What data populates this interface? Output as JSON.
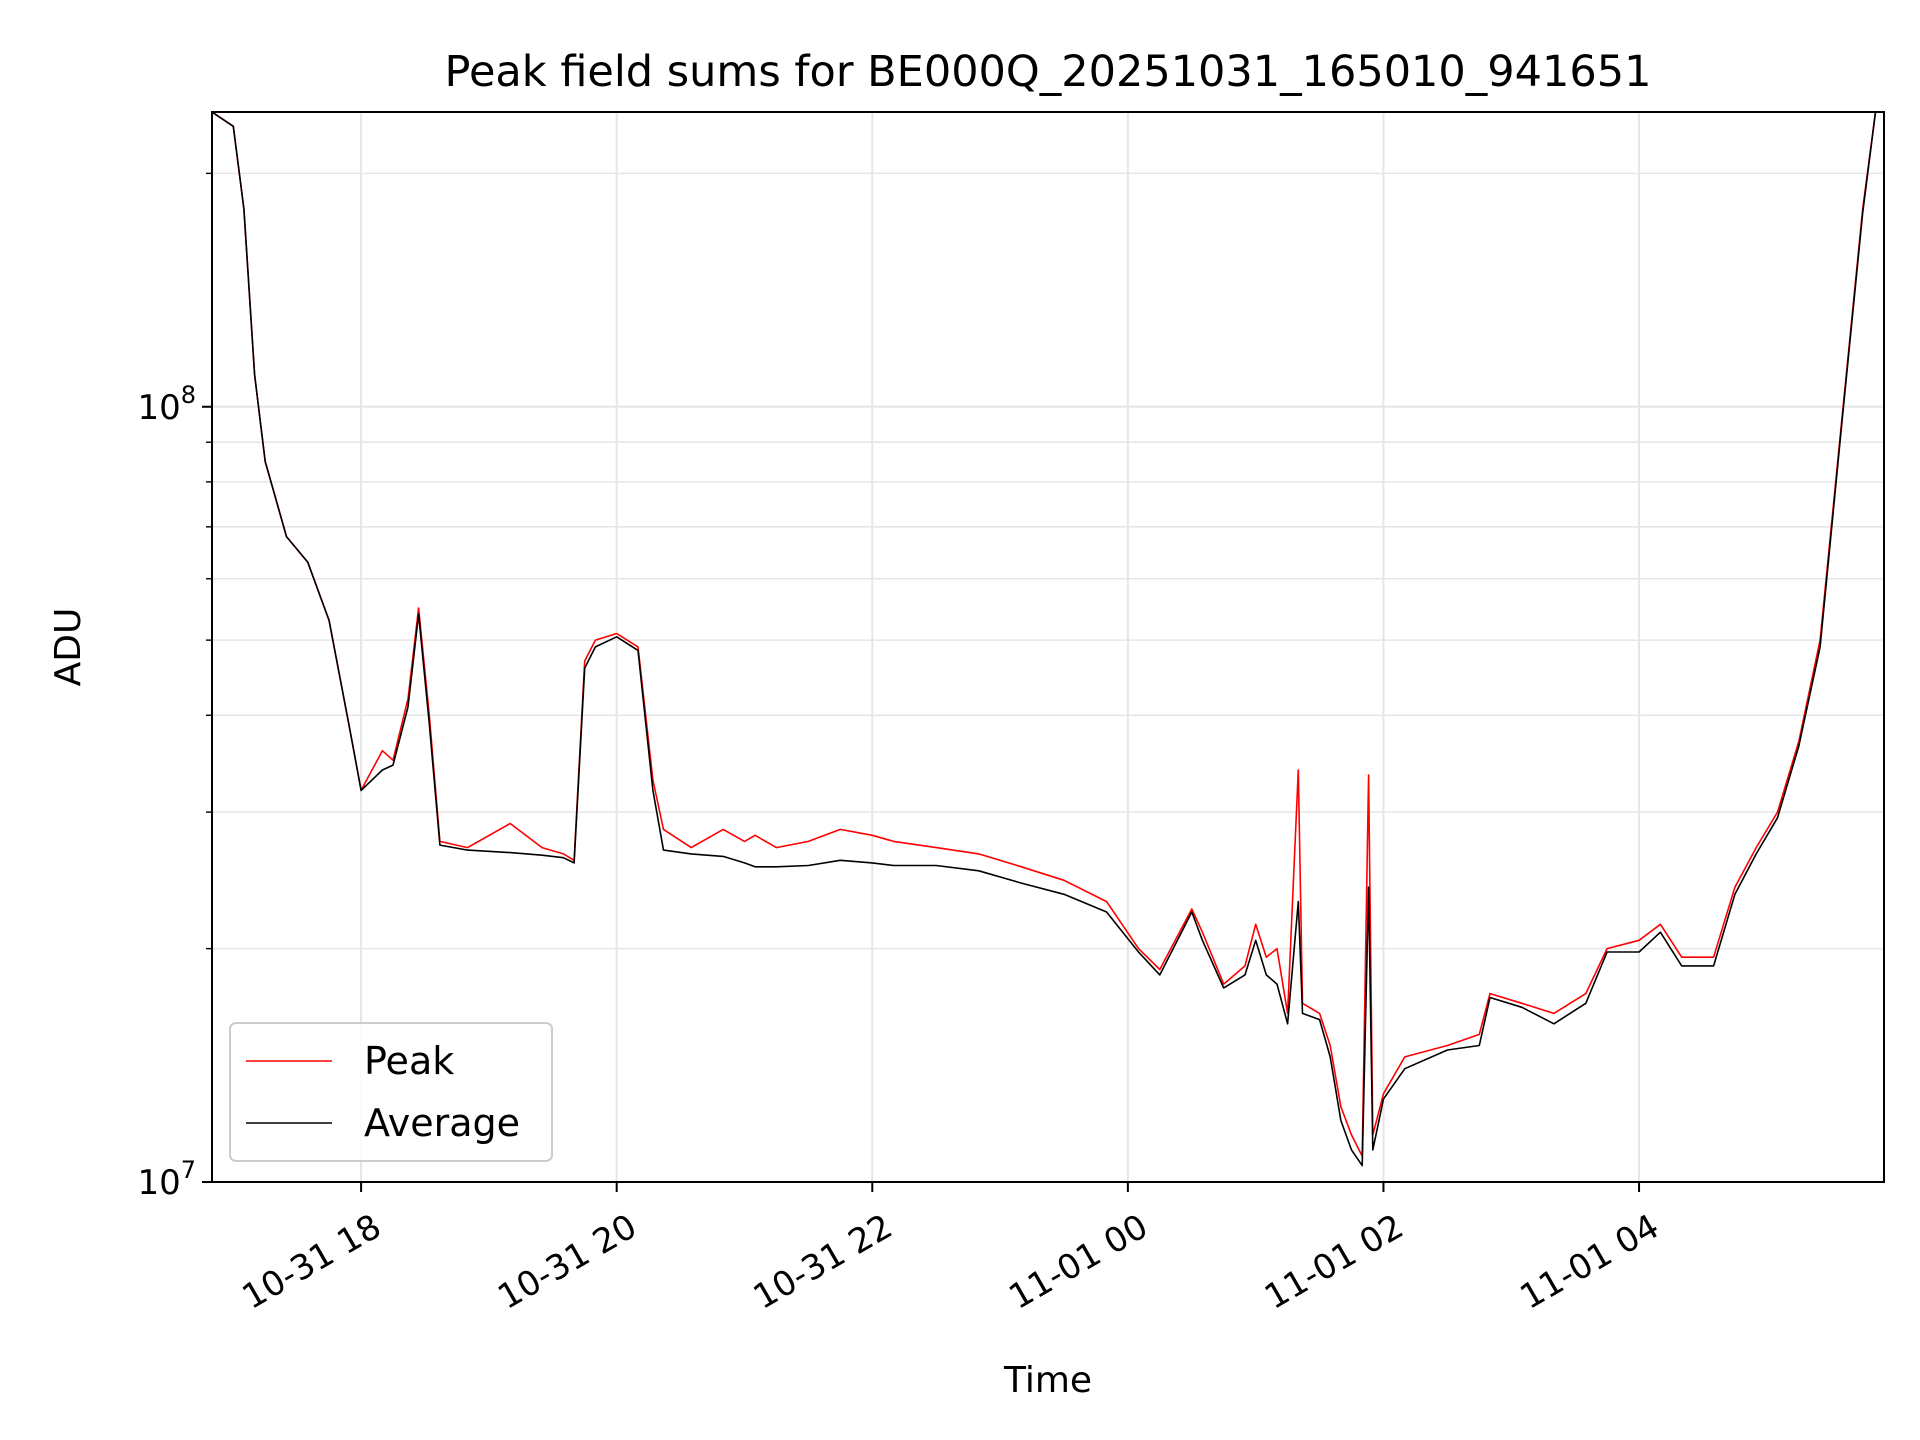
{
  "chart_data": {
    "type": "line",
    "title": "Peak field sums for BE000Q_20251031_165010_941651",
    "xlabel": "Time",
    "ylabel": "ADU",
    "y_scale": "log",
    "ylim": [
      10000000,
      240000000
    ],
    "xlim": [
      "2025-10-31T16:50",
      "2025-11-01T05:55"
    ],
    "x_ticks": [
      {
        "t": "2025-10-31T18:00",
        "label": "10-31 18"
      },
      {
        "t": "2025-10-31T20:00",
        "label": "10-31 20"
      },
      {
        "t": "2025-10-31T22:00",
        "label": "10-31 22"
      },
      {
        "t": "2025-11-01T00:00",
        "label": "11-01 00"
      },
      {
        "t": "2025-11-01T02:00",
        "label": "11-01 02"
      },
      {
        "t": "2025-11-01T04:00",
        "label": "11-01 04"
      }
    ],
    "y_ticks": [
      {
        "value": 10000000,
        "base": "10",
        "exp": "7"
      },
      {
        "value": 100000000,
        "base": "10",
        "exp": "8"
      }
    ],
    "grid": true,
    "legend_position": "lower-left",
    "series": [
      {
        "name": "Peak",
        "color": "#ff0000",
        "points": [
          [
            "2025-10-31T16:50",
            240000000
          ],
          [
            "2025-10-31T17:00",
            230000000
          ],
          [
            "2025-10-31T17:05",
            180000000
          ],
          [
            "2025-10-31T17:10",
            110000000
          ],
          [
            "2025-10-31T17:15",
            85000000
          ],
          [
            "2025-10-31T17:25",
            68000000
          ],
          [
            "2025-10-31T17:35",
            63000000
          ],
          [
            "2025-10-31T17:45",
            53000000
          ],
          [
            "2025-10-31T17:55",
            38000000
          ],
          [
            "2025-10-31T18:00",
            32000000
          ],
          [
            "2025-10-31T18:10",
            36000000
          ],
          [
            "2025-10-31T18:15",
            35000000
          ],
          [
            "2025-10-31T18:22",
            42000000
          ],
          [
            "2025-10-31T18:27",
            55000000
          ],
          [
            "2025-10-31T18:32",
            40000000
          ],
          [
            "2025-10-31T18:37",
            27500000
          ],
          [
            "2025-10-31T18:50",
            27000000
          ],
          [
            "2025-10-31T19:10",
            29000000
          ],
          [
            "2025-10-31T19:25",
            27000000
          ],
          [
            "2025-10-31T19:35",
            26500000
          ],
          [
            "2025-10-31T19:40",
            26000000
          ],
          [
            "2025-10-31T19:45",
            47000000
          ],
          [
            "2025-10-31T19:50",
            50000000
          ],
          [
            "2025-10-31T20:00",
            51000000
          ],
          [
            "2025-10-31T20:10",
            49000000
          ],
          [
            "2025-10-31T20:17",
            33000000
          ],
          [
            "2025-10-31T20:22",
            28500000
          ],
          [
            "2025-10-31T20:35",
            27000000
          ],
          [
            "2025-10-31T20:50",
            28500000
          ],
          [
            "2025-10-31T21:00",
            27500000
          ],
          [
            "2025-10-31T21:05",
            28000000
          ],
          [
            "2025-10-31T21:15",
            27000000
          ],
          [
            "2025-10-31T21:30",
            27500000
          ],
          [
            "2025-10-31T21:45",
            28500000
          ],
          [
            "2025-10-31T22:00",
            28000000
          ],
          [
            "2025-10-31T22:10",
            27500000
          ],
          [
            "2025-10-31T22:30",
            27000000
          ],
          [
            "2025-10-31T22:50",
            26500000
          ],
          [
            "2025-10-31T23:10",
            25500000
          ],
          [
            "2025-10-31T23:30",
            24500000
          ],
          [
            "2025-10-31T23:50",
            23000000
          ],
          [
            "2025-11-01T00:05",
            20000000
          ],
          [
            "2025-11-01T00:15",
            18800000
          ],
          [
            "2025-11-01T00:30",
            22500000
          ],
          [
            "2025-11-01T00:35",
            21000000
          ],
          [
            "2025-11-01T00:45",
            18000000
          ],
          [
            "2025-11-01T00:55",
            19000000
          ],
          [
            "2025-11-01T01:00",
            21500000
          ],
          [
            "2025-11-01T01:05",
            19500000
          ],
          [
            "2025-11-01T01:10",
            20000000
          ],
          [
            "2025-11-01T01:15",
            16500000
          ],
          [
            "2025-11-01T01:20",
            34000000
          ],
          [
            "2025-11-01T01:22",
            17000000
          ],
          [
            "2025-11-01T01:30",
            16500000
          ],
          [
            "2025-11-01T01:35",
            15000000
          ],
          [
            "2025-11-01T01:40",
            12500000
          ],
          [
            "2025-11-01T01:45",
            11500000
          ],
          [
            "2025-11-01T01:50",
            10800000
          ],
          [
            "2025-11-01T01:53",
            33500000
          ],
          [
            "2025-11-01T01:55",
            11500000
          ],
          [
            "2025-11-01T02:00",
            13000000
          ],
          [
            "2025-11-01T02:10",
            14500000
          ],
          [
            "2025-11-01T02:30",
            15000000
          ],
          [
            "2025-11-01T02:45",
            15500000
          ],
          [
            "2025-11-01T02:50",
            17500000
          ],
          [
            "2025-11-01T03:05",
            17000000
          ],
          [
            "2025-11-01T03:20",
            16500000
          ],
          [
            "2025-11-01T03:35",
            17500000
          ],
          [
            "2025-11-01T03:45",
            20000000
          ],
          [
            "2025-11-01T04:00",
            20500000
          ],
          [
            "2025-11-01T04:10",
            21500000
          ],
          [
            "2025-11-01T04:20",
            19500000
          ],
          [
            "2025-11-01T04:35",
            19500000
          ],
          [
            "2025-11-01T04:45",
            24000000
          ],
          [
            "2025-11-01T04:55",
            27000000
          ],
          [
            "2025-11-01T05:05",
            30000000
          ],
          [
            "2025-11-01T05:15",
            37000000
          ],
          [
            "2025-11-01T05:25",
            50000000
          ],
          [
            "2025-11-01T05:35",
            95000000
          ],
          [
            "2025-11-01T05:45",
            180000000
          ],
          [
            "2025-11-01T05:51",
            240000000
          ]
        ]
      },
      {
        "name": "Average",
        "color": "#000000",
        "points": [
          [
            "2025-10-31T16:50",
            240000000
          ],
          [
            "2025-10-31T17:00",
            230000000
          ],
          [
            "2025-10-31T17:05",
            180000000
          ],
          [
            "2025-10-31T17:10",
            110000000
          ],
          [
            "2025-10-31T17:15",
            85000000
          ],
          [
            "2025-10-31T17:25",
            68000000
          ],
          [
            "2025-10-31T17:35",
            63000000
          ],
          [
            "2025-10-31T17:45",
            53000000
          ],
          [
            "2025-10-31T17:55",
            38000000
          ],
          [
            "2025-10-31T18:00",
            32000000
          ],
          [
            "2025-10-31T18:10",
            34000000
          ],
          [
            "2025-10-31T18:15",
            34500000
          ],
          [
            "2025-10-31T18:22",
            41000000
          ],
          [
            "2025-10-31T18:27",
            54000000
          ],
          [
            "2025-10-31T18:32",
            39000000
          ],
          [
            "2025-10-31T18:37",
            27200000
          ],
          [
            "2025-10-31T18:50",
            26800000
          ],
          [
            "2025-10-31T19:10",
            26600000
          ],
          [
            "2025-10-31T19:25",
            26400000
          ],
          [
            "2025-10-31T19:35",
            26200000
          ],
          [
            "2025-10-31T19:40",
            25800000
          ],
          [
            "2025-10-31T19:45",
            46000000
          ],
          [
            "2025-10-31T19:50",
            49000000
          ],
          [
            "2025-10-31T20:00",
            50500000
          ],
          [
            "2025-10-31T20:10",
            48500000
          ],
          [
            "2025-10-31T20:17",
            32000000
          ],
          [
            "2025-10-31T20:22",
            26800000
          ],
          [
            "2025-10-31T20:35",
            26500000
          ],
          [
            "2025-10-31T20:50",
            26300000
          ],
          [
            "2025-10-31T21:00",
            25800000
          ],
          [
            "2025-10-31T21:05",
            25500000
          ],
          [
            "2025-10-31T21:15",
            25500000
          ],
          [
            "2025-10-31T21:30",
            25600000
          ],
          [
            "2025-10-31T21:45",
            26000000
          ],
          [
            "2025-10-31T22:00",
            25800000
          ],
          [
            "2025-10-31T22:10",
            25600000
          ],
          [
            "2025-10-31T22:30",
            25600000
          ],
          [
            "2025-10-31T22:50",
            25200000
          ],
          [
            "2025-10-31T23:10",
            24300000
          ],
          [
            "2025-10-31T23:30",
            23500000
          ],
          [
            "2025-10-31T23:50",
            22300000
          ],
          [
            "2025-11-01T00:05",
            19800000
          ],
          [
            "2025-11-01T00:15",
            18500000
          ],
          [
            "2025-11-01T00:30",
            22300000
          ],
          [
            "2025-11-01T00:35",
            20500000
          ],
          [
            "2025-11-01T00:45",
            17800000
          ],
          [
            "2025-11-01T00:55",
            18500000
          ],
          [
            "2025-11-01T01:00",
            20500000
          ],
          [
            "2025-11-01T01:05",
            18500000
          ],
          [
            "2025-11-01T01:10",
            18000000
          ],
          [
            "2025-11-01T01:15",
            16000000
          ],
          [
            "2025-11-01T01:20",
            23000000
          ],
          [
            "2025-11-01T01:22",
            16500000
          ],
          [
            "2025-11-01T01:30",
            16200000
          ],
          [
            "2025-11-01T01:35",
            14500000
          ],
          [
            "2025-11-01T01:40",
            12000000
          ],
          [
            "2025-11-01T01:45",
            11000000
          ],
          [
            "2025-11-01T01:50",
            10500000
          ],
          [
            "2025-11-01T01:53",
            24000000
          ],
          [
            "2025-11-01T01:55",
            11000000
          ],
          [
            "2025-11-01T02:00",
            12800000
          ],
          [
            "2025-11-01T02:10",
            14000000
          ],
          [
            "2025-11-01T02:30",
            14800000
          ],
          [
            "2025-11-01T02:45",
            15000000
          ],
          [
            "2025-11-01T02:50",
            17300000
          ],
          [
            "2025-11-01T03:05",
            16800000
          ],
          [
            "2025-11-01T03:20",
            16000000
          ],
          [
            "2025-11-01T03:35",
            17000000
          ],
          [
            "2025-11-01T03:45",
            19800000
          ],
          [
            "2025-11-01T04:00",
            19800000
          ],
          [
            "2025-11-01T04:10",
            21000000
          ],
          [
            "2025-11-01T04:20",
            19000000
          ],
          [
            "2025-11-01T04:35",
            19000000
          ],
          [
            "2025-11-01T04:45",
            23500000
          ],
          [
            "2025-11-01T04:55",
            26500000
          ],
          [
            "2025-11-01T05:05",
            29500000
          ],
          [
            "2025-11-01T05:15",
            36500000
          ],
          [
            "2025-11-01T05:25",
            49000000
          ],
          [
            "2025-11-01T05:35",
            94000000
          ],
          [
            "2025-11-01T05:45",
            178000000
          ],
          [
            "2025-11-01T05:51",
            240000000
          ]
        ]
      }
    ]
  }
}
